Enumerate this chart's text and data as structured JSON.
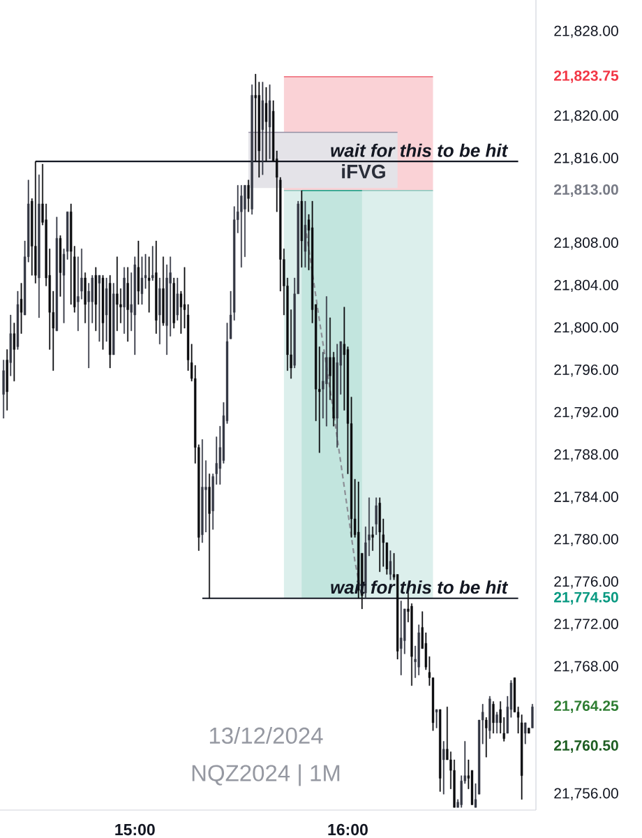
{
  "chart_data": {
    "type": "candlestick",
    "xlim": [
      "2024-12-13T14:22",
      "2024-12-13T16:53"
    ],
    "ylim": [
      21754.5,
      21831
    ],
    "xticks": [
      {
        "value": "2024-12-13T15:00",
        "label": "15:00"
      },
      {
        "value": "2024-12-13T16:00",
        "label": "16:00"
      }
    ],
    "yticks": [
      {
        "value": 21828,
        "label": "21,828.00"
      },
      {
        "value": 21823.75,
        "label": "21,823.75"
      },
      {
        "value": 21820,
        "label": "21,820.00"
      },
      {
        "value": 21816,
        "label": "21,816.00"
      },
      {
        "value": 21813.0,
        "label": "21,813.00"
      },
      {
        "value": 21808,
        "label": "21,808.00"
      },
      {
        "value": 21804,
        "label": "21,804.00"
      },
      {
        "value": 21800,
        "label": "21,800.00"
      },
      {
        "value": 21796,
        "label": "21,796.00"
      },
      {
        "value": 21792,
        "label": "21,792.00"
      },
      {
        "value": 21788,
        "label": "21,788.00"
      },
      {
        "value": 21784,
        "label": "21,784.00"
      },
      {
        "value": 21780,
        "label": "21,780.00"
      },
      {
        "value": 21776,
        "label": "21,776.00"
      },
      {
        "value": 21774.5,
        "label": "21,774.50"
      },
      {
        "value": 21772,
        "label": "21,772.00"
      },
      {
        "value": 21768,
        "label": "21,768.00"
      },
      {
        "value": 21764.25,
        "label": "21,764.25"
      },
      {
        "value": 21760.5,
        "label": "21,760.50"
      },
      {
        "value": 21756,
        "label": "21,756.00"
      }
    ],
    "series": [
      {
        "type": "line",
        "color": "#73bfb3",
        "x": [
          "2024-12-13T15:42",
          "2024-12-13T16:24"
        ],
        "values": [
          21813.0,
          21813.0
        ],
        "upper": [
          21813.0,
          21813.0
        ],
        "lower": [
          21774.5,
          21774.5
        ]
      },
      {
        "type": "line",
        "color": "#0b977b",
        "x": [
          "2024-12-13T15:47",
          "2024-12-13T16:04"
        ],
        "values": [
          21813.0,
          21813.0
        ],
        "upper": [
          21813.0,
          21813.0
        ],
        "lower": [
          21774.5,
          21774.5
        ]
      },
      {
        "type": "line",
        "color": "#eb4b5b",
        "x": [
          "2024-12-13T15:42",
          "2024-12-13T16:24"
        ],
        "values": [
          21823.75,
          21823.75
        ],
        "upper": [
          21823.75,
          21823.75
        ],
        "lower": [
          21813.0,
          21813.0
        ]
      },
      {
        "type": "line",
        "name": "iFVG",
        "color": "#938fa3",
        "x": [
          "2024-12-13T15:32",
          "2024-12-13T16:14"
        ],
        "values": [
          21818.5,
          21818.5
        ],
        "upper": [
          21818.5,
          21818.5
        ],
        "lower": [
          21813.25,
          21813.25
        ]
      },
      {
        "type": "line",
        "color": "#131722",
        "x": [
          "2024-12-13T14:32",
          "2024-12-13T16:48"
        ],
        "values": [
          21815.75,
          21815.75
        ]
      },
      {
        "type": "line",
        "color": "#131722",
        "x": [
          "2024-12-13T15:19",
          "2024-12-13T16:48"
        ],
        "values": [
          21774.5,
          21774.5
        ]
      },
      {
        "type": "line",
        "color": "#8c8f96",
        "line_style": "dashed",
        "x": [
          "2024-12-13T15:48",
          "2024-12-13T15:52",
          "2024-12-13T15:56",
          "2024-12-13T15:59",
          "2024-12-13T16:02",
          "2024-12-13T16:04"
        ],
        "values": [
          21809.75,
          21800.75,
          21792.0,
          21785.0,
          21778.0,
          21774.5
        ]
      },
      {
        "x": [
          "2024-12-13T14:23",
          "2024-12-13T14:24",
          "2024-12-13T14:25",
          "2024-12-13T14:26",
          "2024-12-13T14:27",
          "2024-12-13T14:28",
          "2024-12-13T14:29",
          "2024-12-13T14:30",
          "2024-12-13T14:31",
          "2024-12-13T14:32",
          "2024-12-13T14:33",
          "2024-12-13T14:34",
          "2024-12-13T14:35",
          "2024-12-13T14:36",
          "2024-12-13T14:37",
          "2024-12-13T14:38",
          "2024-12-13T14:39",
          "2024-12-13T14:40",
          "2024-12-13T14:41",
          "2024-12-13T14:42",
          "2024-12-13T14:43",
          "2024-12-13T14:44",
          "2024-12-13T14:45",
          "2024-12-13T14:46",
          "2024-12-13T14:47",
          "2024-12-13T14:48",
          "2024-12-13T14:49",
          "2024-12-13T14:50",
          "2024-12-13T14:51",
          "2024-12-13T14:52",
          "2024-12-13T14:53",
          "2024-12-13T14:54",
          "2024-12-13T14:55",
          "2024-12-13T14:56",
          "2024-12-13T14:57",
          "2024-12-13T14:58",
          "2024-12-13T14:59",
          "2024-12-13T15:00",
          "2024-12-13T15:01",
          "2024-12-13T15:02",
          "2024-12-13T15:03",
          "2024-12-13T15:04",
          "2024-12-13T15:05",
          "2024-12-13T15:06",
          "2024-12-13T15:07",
          "2024-12-13T15:08",
          "2024-12-13T15:09",
          "2024-12-13T15:10",
          "2024-12-13T15:11",
          "2024-12-13T15:12",
          "2024-12-13T15:13",
          "2024-12-13T15:14",
          "2024-12-13T15:15",
          "2024-12-13T15:16",
          "2024-12-13T15:17",
          "2024-12-13T15:18",
          "2024-12-13T15:19",
          "2024-12-13T15:20",
          "2024-12-13T15:21",
          "2024-12-13T15:22",
          "2024-12-13T15:23",
          "2024-12-13T15:24",
          "2024-12-13T15:25",
          "2024-12-13T15:26",
          "2024-12-13T15:27",
          "2024-12-13T15:28",
          "2024-12-13T15:29",
          "2024-12-13T15:30",
          "2024-12-13T15:31",
          "2024-12-13T15:32",
          "2024-12-13T15:33",
          "2024-12-13T15:34",
          "2024-12-13T15:35",
          "2024-12-13T15:36",
          "2024-12-13T15:37",
          "2024-12-13T15:38",
          "2024-12-13T15:39",
          "2024-12-13T15:40",
          "2024-12-13T15:41",
          "2024-12-13T15:42",
          "2024-12-13T15:43",
          "2024-12-13T15:44",
          "2024-12-13T15:45",
          "2024-12-13T15:46",
          "2024-12-13T15:47",
          "2024-12-13T15:48",
          "2024-12-13T15:49",
          "2024-12-13T15:50",
          "2024-12-13T15:51",
          "2024-12-13T15:52",
          "2024-12-13T15:53",
          "2024-12-13T15:54",
          "2024-12-13T15:55",
          "2024-12-13T15:56",
          "2024-12-13T15:57",
          "2024-12-13T15:58",
          "2024-12-13T15:59",
          "2024-12-13T16:00",
          "2024-12-13T16:01",
          "2024-12-13T16:02",
          "2024-12-13T16:03",
          "2024-12-13T16:04",
          "2024-12-13T16:05",
          "2024-12-13T16:06",
          "2024-12-13T16:07",
          "2024-12-13T16:08",
          "2024-12-13T16:09",
          "2024-12-13T16:10",
          "2024-12-13T16:11",
          "2024-12-13T16:12",
          "2024-12-13T16:13",
          "2024-12-13T16:14",
          "2024-12-13T16:15",
          "2024-12-13T16:16",
          "2024-12-13T16:17",
          "2024-12-13T16:18",
          "2024-12-13T16:19",
          "2024-12-13T16:20",
          "2024-12-13T16:21",
          "2024-12-13T16:22",
          "2024-12-13T16:23",
          "2024-12-13T16:24",
          "2024-12-13T16:25",
          "2024-12-13T16:26",
          "2024-12-13T16:27",
          "2024-12-13T16:28",
          "2024-12-13T16:29",
          "2024-12-13T16:30",
          "2024-12-13T16:31",
          "2024-12-13T16:32",
          "2024-12-13T16:33",
          "2024-12-13T16:34",
          "2024-12-13T16:35",
          "2024-12-13T16:36",
          "2024-12-13T16:37",
          "2024-12-13T16:38",
          "2024-12-13T16:39",
          "2024-12-13T16:40",
          "2024-12-13T16:41",
          "2024-12-13T16:42",
          "2024-12-13T16:43",
          "2024-12-13T16:44",
          "2024-12-13T16:45",
          "2024-12-13T16:46",
          "2024-12-13T16:47",
          "2024-12-13T16:48",
          "2024-12-13T16:49",
          "2024-12-13T16:50",
          "2024-12-13T16:51",
          "2024-12-13T16:52"
        ],
        "colors": [
          "#343844",
          "#0c0d10",
          "#343844",
          "#0c0d10",
          "#343844",
          "#0c0d10",
          "#343844",
          "#343844",
          "#0c0d10",
          "#0c0d10",
          "#343844",
          "#0c0d10",
          "#0c0d10",
          "#0c0d10",
          "#0c0d10",
          "#343844",
          "#0c0d10",
          "#343844",
          "#343844",
          "#0c0d10",
          "#0c0d10",
          "#343844",
          "#343844",
          "#0c0d10",
          "#343844",
          "#343844",
          "#0c0d10",
          "#343844",
          "#0c0d10",
          "#343844",
          "#0c0d10",
          "#343844",
          "#0c0d10",
          "#0c0d10",
          "#343844",
          "#0c0d10",
          "#343844",
          "#343844",
          "#0c0d10",
          "#343844",
          "#343844",
          "#0c0d10",
          "#343844",
          "#0c0d10",
          "#343844",
          "#0c0d10",
          "#343844",
          "#343844",
          "#0c0d10",
          "#343844",
          "#0c0d10",
          "#0c0d10",
          "#0c0d10",
          "#0c0d10",
          "#0c0d10",
          "#0c0d10",
          "#343844",
          "#343844",
          "#0c0d10",
          "#343844",
          "#343844",
          "#343844",
          "#343844",
          "#343844",
          "#343844",
          "#343844",
          "#343844",
          "#343844",
          "#343844",
          "#0c0d10",
          "#343844",
          "#0c0d10",
          "#0c0d10",
          "#343844",
          "#0c0d10",
          "#343844",
          "#0c0d10",
          "#0c0d10",
          "#0c0d10",
          "#0c0d10",
          "#0c0d10",
          "#0c0d10",
          "#343844",
          "#343844",
          "#0c0d10",
          "#343844",
          "#0c0d10",
          "#0c0d10",
          "#0c0d10",
          "#0c0d10",
          "#343844",
          "#343844",
          "#0c0d10",
          "#0c0d10",
          "#343844",
          "#343844",
          "#0c0d10",
          "#0c0d10",
          "#0c0d10",
          "#0c0d10",
          "#0c0d10",
          "#0c0d10",
          "#343844",
          "#343844",
          "#0c0d10",
          "#343844",
          "#0c0d10",
          "#0c0d10",
          "#0c0d10",
          "#343844",
          "#0c0d10",
          "#0c0d10",
          "#343844",
          "#343844",
          "#0c0d10",
          "#0c0d10",
          "#343844",
          "#343844",
          "#0c0d10",
          "#0c0d10",
          "#0c0d10",
          "#0c0d10",
          "#343844",
          "#0c0d10",
          "#343844",
          "#0c0d10",
          "#0c0d10",
          "#0c0d10",
          "#343844",
          "#343844",
          "#343844",
          "#0c0d10",
          "#0c0d10",
          "#343844",
          "#343844",
          "#343844",
          "#0c0d10",
          "#343844",
          "#0c0d10",
          "#343844",
          "#0c0d10",
          "#0c0d10",
          "#343844",
          "#343844",
          "#0c0d10",
          "#0c0d10",
          "#0c0d10",
          "#343844",
          "#0c0d10",
          "#343844"
        ],
        "ohlc": [
          [
            21793.75,
            21797.0,
            21791.5,
            21796.0
          ],
          [
            21797.0,
            21798.0,
            21792.25,
            21794.0
          ],
          [
            21796.75,
            21801.25,
            21795.5,
            21799.5
          ],
          [
            21799.5,
            21800.5,
            21795.0,
            21798.0
          ],
          [
            21798.25,
            21803.5,
            21798.0,
            21802.25
          ],
          [
            21802.75,
            21804.25,
            21799.5,
            21801.5
          ],
          [
            21801.25,
            21808.25,
            21801.25,
            21806.75
          ],
          [
            21806.75,
            21814.0,
            21806.25,
            21811.75
          ],
          [
            21812.0,
            21812.25,
            21805.0,
            21807.75
          ],
          [
            21807.75,
            21815.75,
            21804.25,
            21805.0
          ],
          [
            21804.75,
            21814.5,
            21801.0,
            21811.75
          ],
          [
            21811.75,
            21815.5,
            21809.75,
            21810.0
          ],
          [
            21810.25,
            21811.75,
            21804.0,
            21804.75
          ],
          [
            21805.0,
            21807.5,
            21798.0,
            21801.5
          ],
          [
            21801.5,
            21803.5,
            21796.0,
            21800.0
          ],
          [
            21799.75,
            21810.5,
            21799.75,
            21808.5
          ],
          [
            21808.5,
            21808.75,
            21803.0,
            21805.25
          ],
          [
            21805.0,
            21807.5,
            21800.5,
            21807.0
          ],
          [
            21807.25,
            21811.0,
            21806.5,
            21811.0
          ],
          [
            21811.0,
            21811.75,
            21802.25,
            21807.25
          ],
          [
            21806.75,
            21807.75,
            21801.5,
            21802.0
          ],
          [
            21802.5,
            21806.75,
            21799.75,
            21803.0
          ],
          [
            21803.5,
            21807.5,
            21802.75,
            21804.75
          ],
          [
            21804.75,
            21805.25,
            21800.5,
            21802.25
          ],
          [
            21802.5,
            21804.25,
            21796.25,
            21803.5
          ],
          [
            21802.5,
            21805.0,
            21800.5,
            21804.75
          ],
          [
            21805.0,
            21805.75,
            21799.75,
            21802.25
          ],
          [
            21804.25,
            21805.0,
            21798.75,
            21805.0
          ],
          [
            21804.75,
            21805.0,
            21798.0,
            21800.5
          ],
          [
            21801.25,
            21804.75,
            21798.75,
            21803.75
          ],
          [
            21804.25,
            21805.0,
            21796.25,
            21797.5
          ],
          [
            21797.5,
            21804.25,
            21797.5,
            21803.25
          ],
          [
            21803.25,
            21806.75,
            21799.75,
            21802.25
          ],
          [
            21802.25,
            21803.75,
            21800.5,
            21802.0
          ],
          [
            21802.0,
            21805.75,
            21799.5,
            21804.75
          ],
          [
            21804.25,
            21805.75,
            21798.75,
            21801.75
          ],
          [
            21801.5,
            21805.25,
            21799.75,
            21802.25
          ],
          [
            21801.25,
            21806.75,
            21797.5,
            21806.0
          ],
          [
            21805.75,
            21808.25,
            21802.25,
            21803.5
          ],
          [
            21803.25,
            21806.75,
            21802.25,
            21804.75
          ],
          [
            21804.75,
            21807.0,
            21803.75,
            21805.0
          ],
          [
            21804.75,
            21806.75,
            21801.5,
            21804.5
          ],
          [
            21804.75,
            21807.75,
            21804.5,
            21805.0
          ],
          [
            21805.25,
            21808.25,
            21799.5,
            21800.75
          ],
          [
            21801.25,
            21804.75,
            21798.5,
            21803.75
          ],
          [
            21803.75,
            21806.75,
            21800.25,
            21800.5
          ],
          [
            21800.25,
            21806.0,
            21797.5,
            21804.75
          ],
          [
            21804.25,
            21806.75,
            21799.25,
            21805.25
          ],
          [
            21804.25,
            21804.75,
            21800.0,
            21800.5
          ],
          [
            21801.25,
            21804.75,
            21800.75,
            21803.25
          ],
          [
            21803.25,
            21803.5,
            21799.5,
            21802.0
          ],
          [
            21802.25,
            21805.75,
            21800.0,
            21801.75
          ],
          [
            21801.25,
            21802.25,
            21796.0,
            21797.0
          ],
          [
            21796.75,
            21798.5,
            21795.0,
            21795.25
          ],
          [
            21795.25,
            21796.5,
            21787.25,
            21788.75
          ],
          [
            21788.75,
            21789.0,
            21779.0,
            21780.25
          ],
          [
            21780.5,
            21789.5,
            21779.75,
            21785.0
          ],
          [
            21784.75,
            21787.5,
            21780.75,
            21785.0
          ],
          [
            21785.0,
            21786.25,
            21774.5,
            21782.5
          ],
          [
            21782.75,
            21786.25,
            21781.0,
            21786.0
          ],
          [
            21786.25,
            21789.75,
            21785.25,
            21787.25
          ],
          [
            21786.75,
            21790.75,
            21785.25,
            21788.75
          ],
          [
            21787.5,
            21793.0,
            21787.25,
            21791.75
          ],
          [
            21791.25,
            21800.5,
            21791.0,
            21798.75
          ],
          [
            21799.0,
            21803.5,
            21799.0,
            21801.25
          ],
          [
            21801.5,
            21811.5,
            21800.75,
            21810.25
          ],
          [
            21810.25,
            21813.5,
            21809.0,
            21811.0
          ],
          [
            21811.0,
            21813.5,
            21805.75,
            21812.5
          ],
          [
            21811.25,
            21813.5,
            21806.75,
            21813.5
          ],
          [
            21813.5,
            21814.0,
            21811.0,
            21812.25
          ],
          [
            21811.25,
            21823.0,
            21810.75,
            21822.0
          ],
          [
            21822.0,
            21824.0,
            21815.75,
            21821.75
          ],
          [
            21822.0,
            21823.25,
            21814.25,
            21816.75
          ],
          [
            21818.75,
            21823.25,
            21814.5,
            21821.5
          ],
          [
            21821.25,
            21822.75,
            21815.75,
            21819.5
          ],
          [
            21819.0,
            21823.0,
            21816.0,
            21821.5
          ],
          [
            21820.5,
            21821.5,
            21815.75,
            21815.75
          ],
          [
            21816.0,
            21816.75,
            21811.0,
            21814.25
          ],
          [
            21814.0,
            21814.25,
            21803.5,
            21806.5
          ],
          [
            21806.5,
            21807.5,
            21801.25,
            21804.0
          ],
          [
            21804.0,
            21804.75,
            21796.0,
            21797.5
          ],
          [
            21797.5,
            21801.75,
            21795.25,
            21796.25
          ],
          [
            21796.5,
            21804.75,
            21796.25,
            21803.25
          ],
          [
            21803.25,
            21812.0,
            21803.25,
            21811.75
          ],
          [
            21812.0,
            21813.0,
            21805.75,
            21808.25
          ],
          [
            21807.25,
            21812.0,
            21805.75,
            21809.75
          ],
          [
            21810.25,
            21810.75,
            21805.5,
            21809.25
          ],
          [
            21809.5,
            21812.0,
            21800.5,
            21801.75
          ],
          [
            21802.25,
            21802.25,
            21791.25,
            21794.25
          ],
          [
            21794.25,
            21798.25,
            21788.25,
            21794.0
          ],
          [
            21794.25,
            21797.75,
            21791.5,
            21795.0
          ],
          [
            21794.75,
            21803.0,
            21790.75,
            21797.25
          ],
          [
            21797.25,
            21801.0,
            21793.25,
            21795.5
          ],
          [
            21797.25,
            21797.75,
            21790.75,
            21791.5
          ],
          [
            21791.5,
            21798.5,
            21788.75,
            21796.75
          ],
          [
            21796.5,
            21798.75,
            21793.75,
            21798.75
          ],
          [
            21798.5,
            21802.0,
            21792.25,
            21797.5
          ],
          [
            21798.0,
            21798.25,
            21786.25,
            21791.0
          ],
          [
            21791.0,
            21793.5,
            21780.25,
            21782.0
          ],
          [
            21782.0,
            21785.75,
            21780.25,
            21780.5
          ],
          [
            21780.75,
            21785.5,
            21774.5,
            21775.25
          ],
          [
            21778.75,
            21778.75,
            21773.5,
            21774.75
          ],
          [
            21775.0,
            21781.25,
            21774.5,
            21779.75
          ],
          [
            21780.0,
            21784.0,
            21778.5,
            21780.5
          ],
          [
            21780.5,
            21781.25,
            21779.0,
            21780.25
          ],
          [
            21781.5,
            21784.0,
            21780.5,
            21783.25
          ],
          [
            21783.5,
            21784.0,
            21777.0,
            21780.75
          ],
          [
            21780.5,
            21782.0,
            21777.5,
            21779.75
          ],
          [
            21779.75,
            21779.75,
            21776.75,
            21777.25
          ],
          [
            21776.75,
            21779.0,
            21776.25,
            21778.0
          ],
          [
            21776.75,
            21778.75,
            21776.25,
            21776.5
          ],
          [
            21776.75,
            21776.75,
            21768.75,
            21769.5
          ],
          [
            21769.75,
            21774.25,
            21767.25,
            21770.75
          ],
          [
            21770.5,
            21773.5,
            21769.25,
            21773.5
          ],
          [
            21773.5,
            21775.0,
            21772.25,
            21773.25
          ],
          [
            21773.75,
            21774.0,
            21766.25,
            21769.0
          ],
          [
            21768.5,
            21770.0,
            21767.0,
            21768.75
          ],
          [
            21768.0,
            21772.0,
            21767.25,
            21771.25
          ],
          [
            21771.75,
            21773.25,
            21769.75,
            21769.75
          ],
          [
            21770.25,
            21771.25,
            21767.75,
            21768.0
          ],
          [
            21767.5,
            21769.0,
            21766.25,
            21767.0
          ],
          [
            21767.0,
            21767.0,
            21762.0,
            21762.75
          ],
          [
            21763.75,
            21764.0,
            21762.25,
            21764.0
          ],
          [
            21764.0,
            21764.0,
            21756.25,
            21757.5
          ],
          [
            21759.25,
            21761.0,
            21756.0,
            21760.25
          ],
          [
            21760.25,
            21764.25,
            21759.25,
            21759.25
          ],
          [
            21759.25,
            21760.0,
            21756.5,
            21758.25
          ],
          [
            21758.25,
            21759.25,
            21754.75,
            21754.75
          ],
          [
            21754.75,
            21755.5,
            21754.75,
            21755.25
          ],
          [
            21755.0,
            21757.75,
            21754.75,
            21757.25
          ],
          [
            21757.25,
            21761.0,
            21757.0,
            21757.75
          ],
          [
            21757.75,
            21759.25,
            21756.5,
            21757.5
          ],
          [
            21758.25,
            21758.25,
            21755.0,
            21755.0
          ],
          [
            21754.75,
            21757.0,
            21754.75,
            21755.5
          ],
          [
            21756.0,
            21763.0,
            21756.0,
            21763.0
          ],
          [
            21763.0,
            21764.5,
            21760.75,
            21763.75
          ],
          [
            21763.0,
            21763.25,
            21759.5,
            21762.25
          ],
          [
            21762.0,
            21765.25,
            21761.25,
            21765.0
          ],
          [
            21764.5,
            21764.75,
            21761.75,
            21762.75
          ],
          [
            21762.75,
            21763.75,
            21761.75,
            21763.5
          ],
          [
            21764.0,
            21764.75,
            21761.75,
            21762.75
          ],
          [
            21761.75,
            21763.25,
            21761.0,
            21761.25
          ],
          [
            21761.75,
            21765.25,
            21761.75,
            21764.25
          ],
          [
            21764.0,
            21766.75,
            21763.25,
            21766.5
          ],
          [
            21767.0,
            21767.0,
            21763.75,
            21763.75
          ],
          [
            21763.75,
            21764.25,
            21761.75,
            21763.25
          ],
          [
            21762.75,
            21763.5,
            21755.5,
            21757.75
          ],
          [
            21761.75,
            21762.75,
            21760.75,
            21762.75
          ],
          [
            21762.25,
            21762.25,
            21761.75,
            21761.75
          ],
          [
            21762.25,
            21764.5,
            21762.25,
            21764.25
          ]
        ]
      }
    ],
    "annotations": [
      {
        "text": "wait for this to be hit",
        "x": "2024-12-13T16:20",
        "y": 21815.75
      },
      {
        "text": "wait for this to be hit",
        "x": "2024-12-13T16:20",
        "y": 21774.5
      },
      "13/12/2024",
      "NQZ2024 | 1M"
    ]
  }
}
